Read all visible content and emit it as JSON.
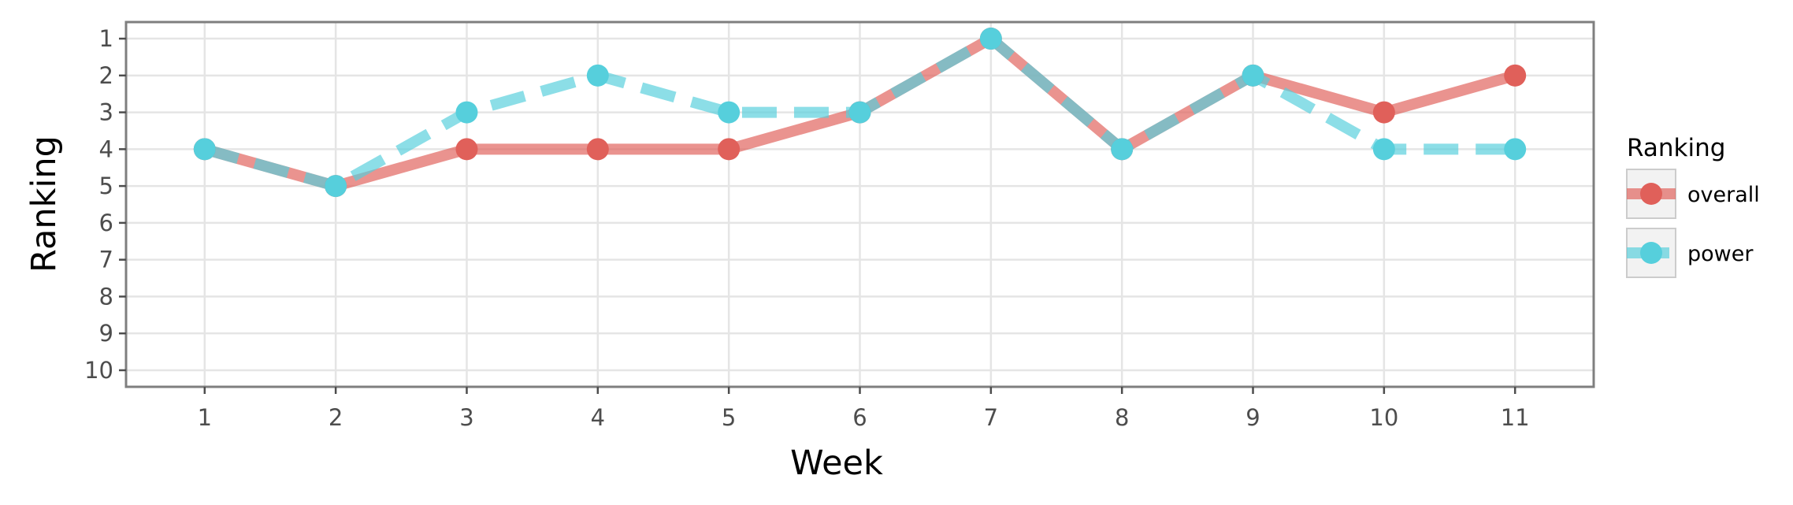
{
  "chart_data": {
    "type": "line",
    "xlabel": "Week",
    "ylabel": "Ranking",
    "x": [
      1,
      2,
      3,
      4,
      5,
      6,
      7,
      8,
      9,
      10,
      11
    ],
    "xticks": [
      "1",
      "2",
      "3",
      "4",
      "5",
      "6",
      "7",
      "8",
      "9",
      "10",
      "11"
    ],
    "yticks": [
      "1",
      "2",
      "3",
      "4",
      "5",
      "6",
      "7",
      "8",
      "9",
      "10"
    ],
    "xlim": [
      0.4,
      11.6
    ],
    "ylim": [
      10.45,
      0.55
    ],
    "y_reversed": true,
    "grid": true,
    "legend": {
      "title": "Ranking",
      "position": "right"
    },
    "series": [
      {
        "name": "overall",
        "color": "#e0605a",
        "linestyle": "solid",
        "values": [
          4,
          5,
          4,
          4,
          4,
          3,
          1,
          4,
          2,
          3,
          2
        ]
      },
      {
        "name": "power",
        "color": "#56cfdc",
        "linestyle": "dashed",
        "values": [
          4,
          5,
          3,
          2,
          3,
          3,
          1,
          4,
          2,
          4,
          4
        ]
      }
    ]
  }
}
